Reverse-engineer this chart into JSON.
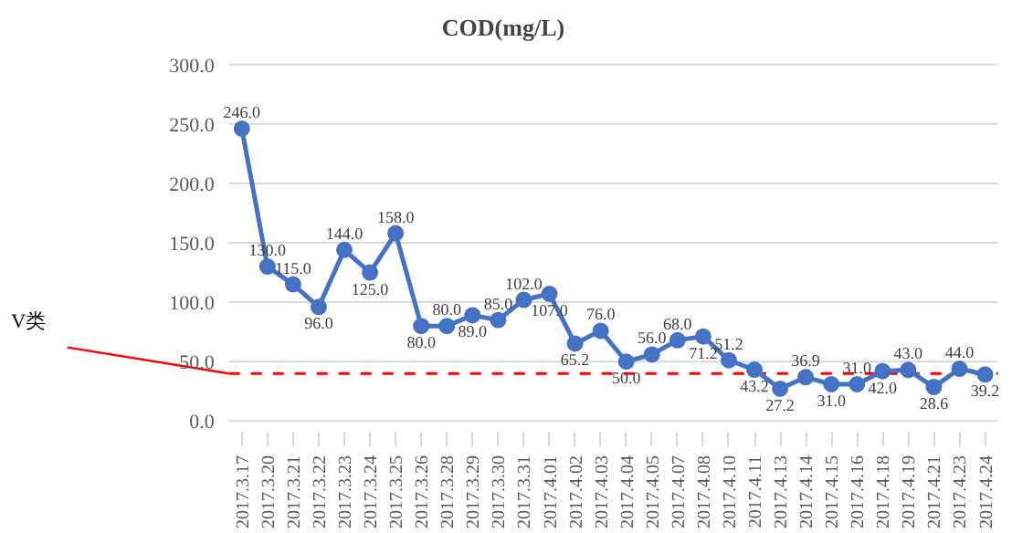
{
  "chart_data": {
    "type": "line",
    "title": "COD(mg/L)",
    "categories": [
      "2017.3.17",
      "2017.3.20",
      "2017.3.21",
      "2017.3.22",
      "2017.3.23",
      "2017.3.24",
      "2017.3.25",
      "2017.3.26",
      "2017.3.28",
      "2017.3.29",
      "2017.3.30",
      "2017.3.31",
      "2017.4.01",
      "2017.4.02",
      "2017.4.03",
      "2017.4.04",
      "2017.4.05",
      "2017.4.07",
      "2017.4.08",
      "2017.4.10",
      "2017.4.11",
      "2017.4.13",
      "2017.4.14",
      "2017.4.15",
      "2017.4.16",
      "2017.4.18",
      "2017.4.19",
      "2017.4.21",
      "2017.4.23",
      "2017.4.24"
    ],
    "series": [
      {
        "color": "#4472c4",
        "values": [
          246.0,
          130.0,
          115.0,
          96.0,
          144.0,
          125.0,
          158.0,
          80.0,
          80.0,
          89.0,
          85.0,
          102.0,
          107.0,
          65.2,
          76.0,
          50.0,
          56.0,
          68.0,
          71.2,
          51.2,
          43.2,
          27.2,
          36.9,
          31.0,
          31.0,
          42.0,
          43.0,
          28.6,
          44.0,
          39.2
        ],
        "value_labels": [
          "246.0",
          "130.0",
          "115.0",
          "96.0",
          "144.0",
          "125.0",
          "158.0",
          "80.0",
          "80.0",
          "89.0",
          "85.0",
          "102.0",
          "107.0",
          "65.2",
          "76.0",
          "50.0",
          "56.0",
          "68.0",
          "71.2",
          "51.2",
          "43.2",
          "27.2",
          "36.9",
          "31.0",
          "31.0",
          "42.0",
          "43.0",
          "28.6",
          "44.0",
          "39.2"
        ]
      }
    ],
    "ylim": [
      0,
      300
    ],
    "yticks": [
      {
        "value": 0,
        "label": "0.0"
      },
      {
        "value": 50,
        "label": "50.0"
      },
      {
        "value": 100,
        "label": "100.0"
      },
      {
        "value": 150,
        "label": "150.0"
      },
      {
        "value": 200,
        "label": "200.0"
      },
      {
        "value": 250,
        "label": "250.0"
      },
      {
        "value": 300,
        "label": "300.0"
      }
    ],
    "grid": "y",
    "marker": "circle",
    "line_style": "solid",
    "ref_lines": [
      {
        "axis": "y",
        "value": 40,
        "label": "V类",
        "color": "#ff0000",
        "line_style": "dashed"
      }
    ]
  }
}
